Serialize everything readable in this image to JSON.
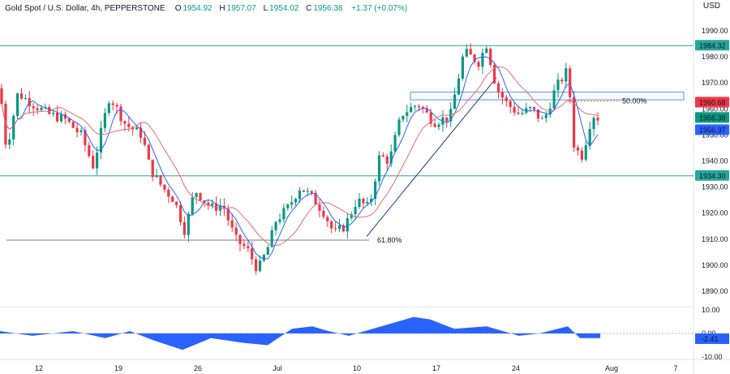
{
  "header": {
    "symbol": "Gold Spot / U.S. Dollar, 4h, PEPPERSTONE",
    "open_label": "O",
    "open": "1954.92",
    "high_label": "H",
    "high": "1957.07",
    "low_label": "L",
    "low": "1954.02",
    "close_label": "C",
    "close": "1956.38",
    "change": "+1.37 (+0.07%)"
  },
  "currency": "USD",
  "colors": {
    "up": "#089981",
    "down": "#f23645",
    "ma_fast": "#2962ff",
    "ma_slow": "#e06c75",
    "hline": "#26a69a",
    "fib": "#787b86",
    "osc": "#2962ff"
  },
  "chart_data": {
    "type": "candlestick",
    "x_ticks": [
      "12",
      "19",
      "26",
      "Jul",
      "10",
      "17",
      "24",
      "Aug",
      "7"
    ],
    "y_ticks": [
      1990.0,
      1980.0,
      1970.0,
      1960.0,
      1950.0,
      1940.0,
      1930.0,
      1920.0,
      1910.0,
      1900.0,
      1890.0
    ],
    "ylim": [
      1885,
      1995
    ],
    "horizontal_levels": [
      {
        "label": "1984.32",
        "value": 1984.32
      },
      {
        "label": "1934.30",
        "value": 1934.3
      }
    ],
    "price_labels": [
      {
        "label": "1960.68",
        "value": 1960.68,
        "color": "#f23645"
      },
      {
        "label": "1956.38",
        "value": 1956.38,
        "color": "#089981"
      },
      {
        "label": "1956.37",
        "value": 1956.37,
        "color": "#2962ff"
      }
    ],
    "fib_annotations": [
      {
        "label": "61.80%",
        "value": 1909.6
      },
      {
        "label": "50.00%",
        "value": 1963.0
      }
    ],
    "oscillator": {
      "y_ticks": [
        "10.00",
        "0.00",
        "-10.00"
      ],
      "ylim": [
        -10,
        10
      ],
      "last_label": "-2.41",
      "last_value": -2.41
    }
  }
}
